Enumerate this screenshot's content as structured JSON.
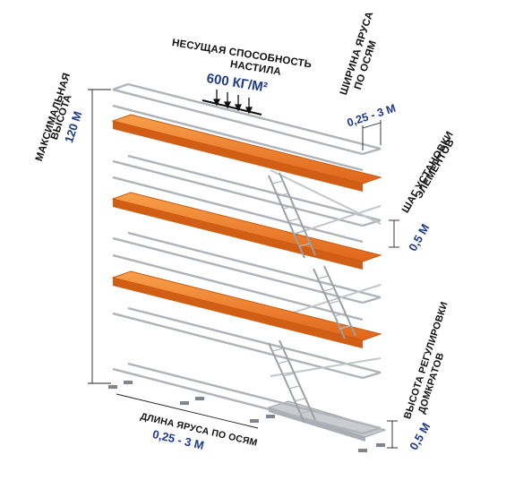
{
  "labels": {
    "load_title_line1": "НЕСУЩАЯ СПОСОБНОСТЬ",
    "load_title_line2": "НАСТИЛА",
    "load_value": "600 КГ/М²",
    "max_height_line1": "МАКСИМАЛЬНАЯ",
    "max_height_line2": "ВЫСОТА",
    "max_height_value": "120 М",
    "width_line1": "ШИРИНА ЯРУСА",
    "width_line2": "ПО ОСЯМ",
    "width_value": "0,25 - 3 М",
    "step_line1": "ШАГ УСТАНОВКИ",
    "step_line2": "ЭЛЕМЕНТОВ",
    "step_value": "0,5 М",
    "length_line1": "ДЛИНА ЯРУСА ПО ОСЯМ",
    "length_value": "0,25 - 3 М",
    "jack_line1": "ВЫСОТА РЕГУЛИРОВКИ",
    "jack_line2": "ДОМКРАТОВ",
    "jack_value": "0,5 М"
  },
  "colors": {
    "text": "#111111",
    "value": "#1f3a8a",
    "platform": "#f07a1e",
    "steel": "#b8bcc2"
  }
}
